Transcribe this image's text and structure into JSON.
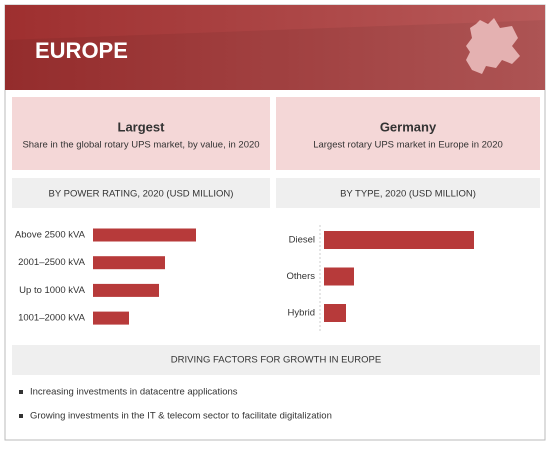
{
  "header": {
    "title": "EUROPE"
  },
  "cards": [
    {
      "title": "Largest",
      "subtitle": "Share in the global rotary UPS market, by value, in 2020"
    },
    {
      "title": "Germany",
      "subtitle": "Largest rotary UPS market in Europe in 2020"
    }
  ],
  "chart_data": [
    {
      "type": "bar",
      "orientation": "horizontal",
      "title": "BY POWER RATING, 2020 (USD MILLION)",
      "categories": [
        "Above 2500 kVA",
        "2001–2500 kVA",
        "Up to 1000 kVA",
        "1001–2000 kVA"
      ],
      "values": [
        103,
        72,
        66,
        36
      ],
      "color": "#b73a3a"
    },
    {
      "type": "bar",
      "orientation": "horizontal",
      "title": "BY TYPE, 2020 (USD MILLION)",
      "categories": [
        "Diesel",
        "Others",
        "Hybrid"
      ],
      "values": [
        150,
        30,
        22
      ],
      "color": "#b73a3a"
    }
  ],
  "driving_factors": {
    "title": "DRIVING FACTORS FOR GROWTH IN EUROPE",
    "items": [
      "Increasing investments in datacentre applications",
      "Growing investments in the IT & telecom sector to facilitate digitalization"
    ]
  }
}
